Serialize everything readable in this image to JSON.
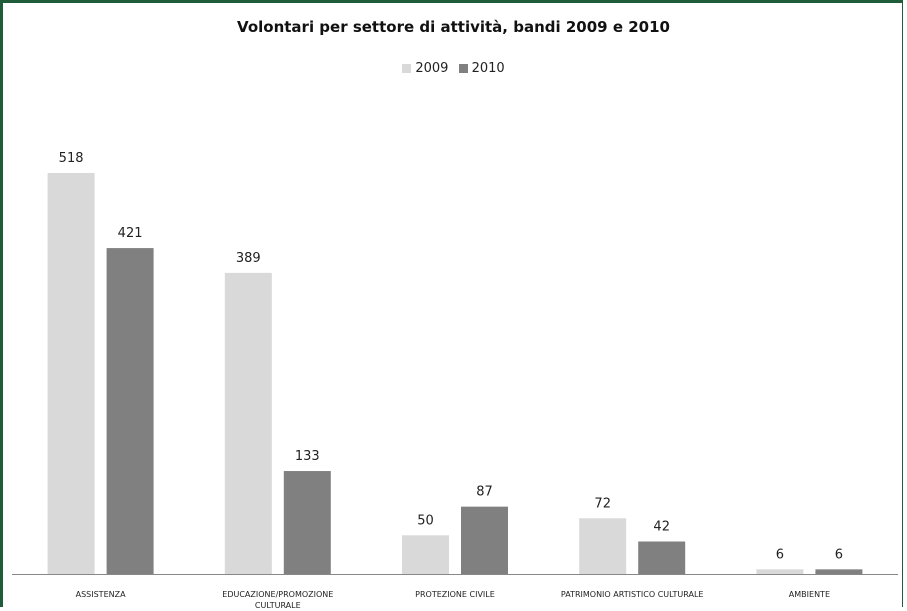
{
  "chart_data": {
    "type": "bar",
    "title": "Volontari per settore di attività, bandi 2009 e 2010",
    "categories": [
      [
        "ASSISTENZA"
      ],
      [
        "EDUCAZIONE/PROMOZIONE",
        "CULTURALE"
      ],
      [
        "PROTEZIONE CIVILE"
      ],
      [
        "PATRIMONIO ARTISTICO CULTURALE"
      ],
      [
        "AMBIENTE"
      ]
    ],
    "series": [
      {
        "name": "2009",
        "values": [
          518,
          389,
          50,
          72,
          6
        ],
        "color": "#d9d9d9"
      },
      {
        "name": "2010",
        "values": [
          421,
          133,
          87,
          42,
          6
        ],
        "color": "#808080"
      }
    ],
    "legend_position": "top",
    "grid": false,
    "ylim": [
      0,
      540
    ]
  }
}
